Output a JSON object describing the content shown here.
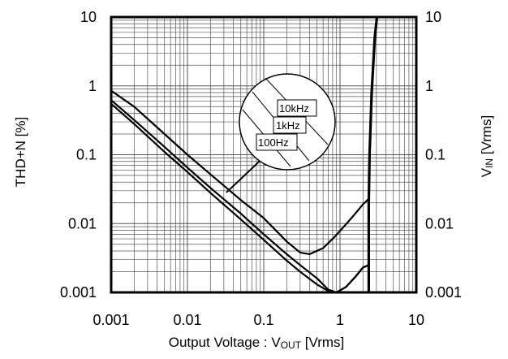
{
  "chart_data": {
    "type": "line",
    "xscale": "log",
    "yscale": "log",
    "xlim": [
      0.001,
      10
    ],
    "ylim": [
      0.001,
      10
    ],
    "y2lim": [
      0.001,
      10
    ],
    "x_ticks": [
      "0.001",
      "0.01",
      "0.1",
      "1",
      "10"
    ],
    "y_ticks": [
      "0.001",
      "0.01",
      "0.1",
      "1",
      "10"
    ],
    "y2_ticks": [
      "0.001",
      "0.01",
      "0.1",
      "1",
      "10"
    ],
    "xlabel": "Output Voltage : V",
    "xlabel_sub": "OUT",
    "xlabel_unit": " [Vrms]",
    "ylabel": "THD+N [%]",
    "y2label": "V",
    "y2label_sub": "IN",
    "y2label_unit": " [Vrms]",
    "grid": true,
    "legend_entries": [
      "10kHz",
      "1kHz",
      "100Hz"
    ],
    "legend_placement": "center-right (circular callout)",
    "series": [
      {
        "name": "10kHz",
        "x": [
          0.001,
          0.002,
          0.005,
          0.01,
          0.02,
          0.05,
          0.1,
          0.2,
          0.3,
          0.4,
          0.6,
          0.8,
          1,
          1.5,
          2,
          2.4
        ],
        "y": [
          0.85,
          0.5,
          0.2,
          0.1,
          0.052,
          0.022,
          0.012,
          0.0055,
          0.0038,
          0.0036,
          0.0044,
          0.006,
          0.0078,
          0.013,
          0.019,
          0.023
        ]
      },
      {
        "name": "1kHz",
        "x": [
          0.001,
          0.002,
          0.005,
          0.01,
          0.02,
          0.05,
          0.1,
          0.2,
          0.3,
          0.5,
          0.7,
          0.9,
          1.2,
          1.6,
          2,
          2.4
        ],
        "y": [
          0.62,
          0.32,
          0.13,
          0.065,
          0.033,
          0.014,
          0.007,
          0.0036,
          0.0025,
          0.0016,
          0.0011,
          0.001,
          0.0012,
          0.0017,
          0.0023,
          0.0025
        ]
      },
      {
        "name": "100Hz",
        "x": [
          0.001,
          0.002,
          0.005,
          0.01,
          0.02,
          0.05,
          0.1,
          0.2,
          0.3,
          0.5,
          0.7,
          0.9,
          1.2,
          1.6,
          2,
          2.4
        ],
        "y": [
          0.55,
          0.28,
          0.11,
          0.056,
          0.028,
          0.0115,
          0.0058,
          0.0029,
          0.002,
          0.0013,
          0.00105,
          0.001,
          0.0012,
          0.0017,
          0.0023,
          0.0025
        ]
      },
      {
        "name": "VIN",
        "axis": "right",
        "x": [
          2.38,
          2.38,
          2.44,
          2.6,
          2.85,
          3.05
        ],
        "y": [
          0.001,
          0.02,
          0.1,
          0.8,
          5,
          10
        ]
      }
    ]
  }
}
